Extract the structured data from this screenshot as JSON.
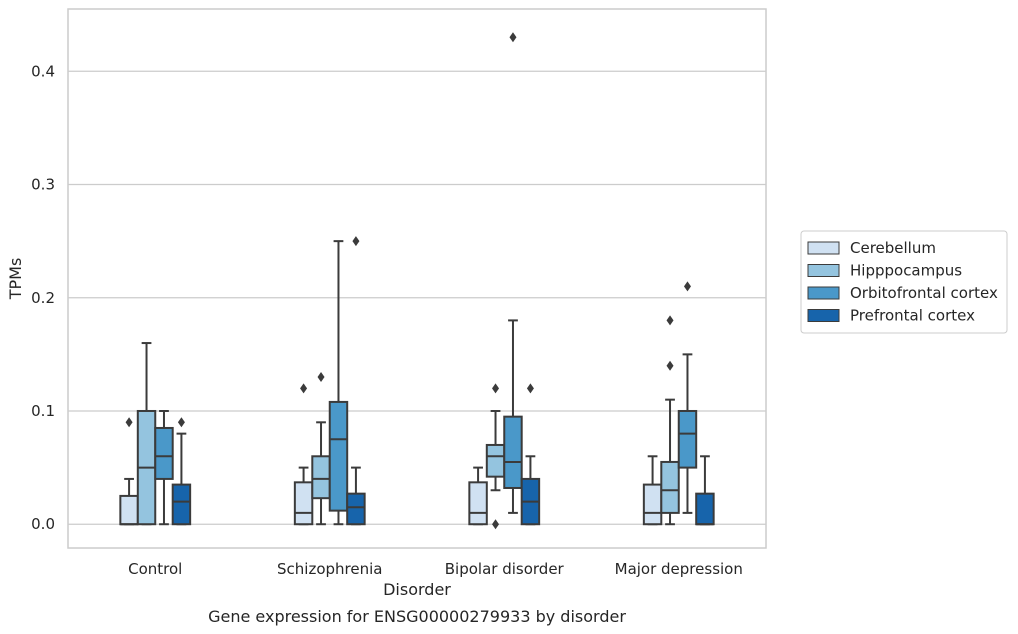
{
  "chart_data": {
    "type": "box",
    "caption": "Gene expression for ENSG00000279933 by disorder",
    "xlabel": "Disorder",
    "ylabel": "TPMs",
    "ylim": [
      -0.021,
      0.455
    ],
    "yticks": [
      "0.0",
      "0.1",
      "0.2",
      "0.3",
      "0.4"
    ],
    "grid": "horizontal",
    "legend_position": "right",
    "categories": [
      "Control",
      "Schizophrenia",
      "Bipolar disorder",
      "Major depression"
    ],
    "series": [
      {
        "name": "Cerebellum",
        "color": "#d0e1f2",
        "boxes": [
          {
            "whisker_low": 0,
            "q1": 0,
            "median": 0,
            "q3": 0.025,
            "whisker_high": 0.04,
            "outliers": [
              0.09
            ]
          },
          {
            "whisker_low": 0,
            "q1": 0,
            "median": 0.01,
            "q3": 0.037,
            "whisker_high": 0.05,
            "outliers": [
              0.12
            ]
          },
          {
            "whisker_low": 0,
            "q1": 0,
            "median": 0.01,
            "q3": 0.037,
            "whisker_high": 0.05,
            "outliers": []
          },
          {
            "whisker_low": 0,
            "q1": 0,
            "median": 0.01,
            "q3": 0.035,
            "whisker_high": 0.06,
            "outliers": []
          }
        ]
      },
      {
        "name": "Hipppocampus",
        "color": "#94c4df",
        "boxes": [
          {
            "whisker_low": 0,
            "q1": 0,
            "median": 0.05,
            "q3": 0.1,
            "whisker_high": 0.16,
            "outliers": []
          },
          {
            "whisker_low": 0,
            "q1": 0.023,
            "median": 0.04,
            "q3": 0.06,
            "whisker_high": 0.09,
            "outliers": [
              0.13
            ]
          },
          {
            "whisker_low": 0.03,
            "q1": 0.042,
            "median": 0.06,
            "q3": 0.07,
            "whisker_high": 0.1,
            "outliers": [
              0.12,
              0.0
            ]
          },
          {
            "whisker_low": 0,
            "q1": 0.01,
            "median": 0.03,
            "q3": 0.055,
            "whisker_high": 0.11,
            "outliers": [
              0.14,
              0.18
            ]
          }
        ]
      },
      {
        "name": "Orbitofrontal cortex",
        "color": "#4a98c9",
        "boxes": [
          {
            "whisker_low": 0,
            "q1": 0.04,
            "median": 0.06,
            "q3": 0.085,
            "whisker_high": 0.1,
            "outliers": []
          },
          {
            "whisker_low": 0,
            "q1": 0.012,
            "median": 0.075,
            "q3": 0.108,
            "whisker_high": 0.25,
            "outliers": []
          },
          {
            "whisker_low": 0.01,
            "q1": 0.032,
            "median": 0.055,
            "q3": 0.095,
            "whisker_high": 0.18,
            "outliers": [
              0.43
            ]
          },
          {
            "whisker_low": 0.01,
            "q1": 0.05,
            "median": 0.08,
            "q3": 0.1,
            "whisker_high": 0.15,
            "outliers": [
              0.21
            ]
          }
        ]
      },
      {
        "name": "Prefrontal cortex",
        "color": "#1764ab",
        "boxes": [
          {
            "whisker_low": 0,
            "q1": 0,
            "median": 0.02,
            "q3": 0.035,
            "whisker_high": 0.08,
            "outliers": [
              0.09
            ]
          },
          {
            "whisker_low": 0,
            "q1": 0,
            "median": 0.015,
            "q3": 0.027,
            "whisker_high": 0.05,
            "outliers": [
              0.25
            ]
          },
          {
            "whisker_low": 0,
            "q1": 0,
            "median": 0.02,
            "q3": 0.04,
            "whisker_high": 0.06,
            "outliers": [
              0.12
            ]
          },
          {
            "whisker_low": 0,
            "q1": 0,
            "median": 0,
            "q3": 0.027,
            "whisker_high": 0.06,
            "outliers": []
          }
        ]
      }
    ]
  }
}
